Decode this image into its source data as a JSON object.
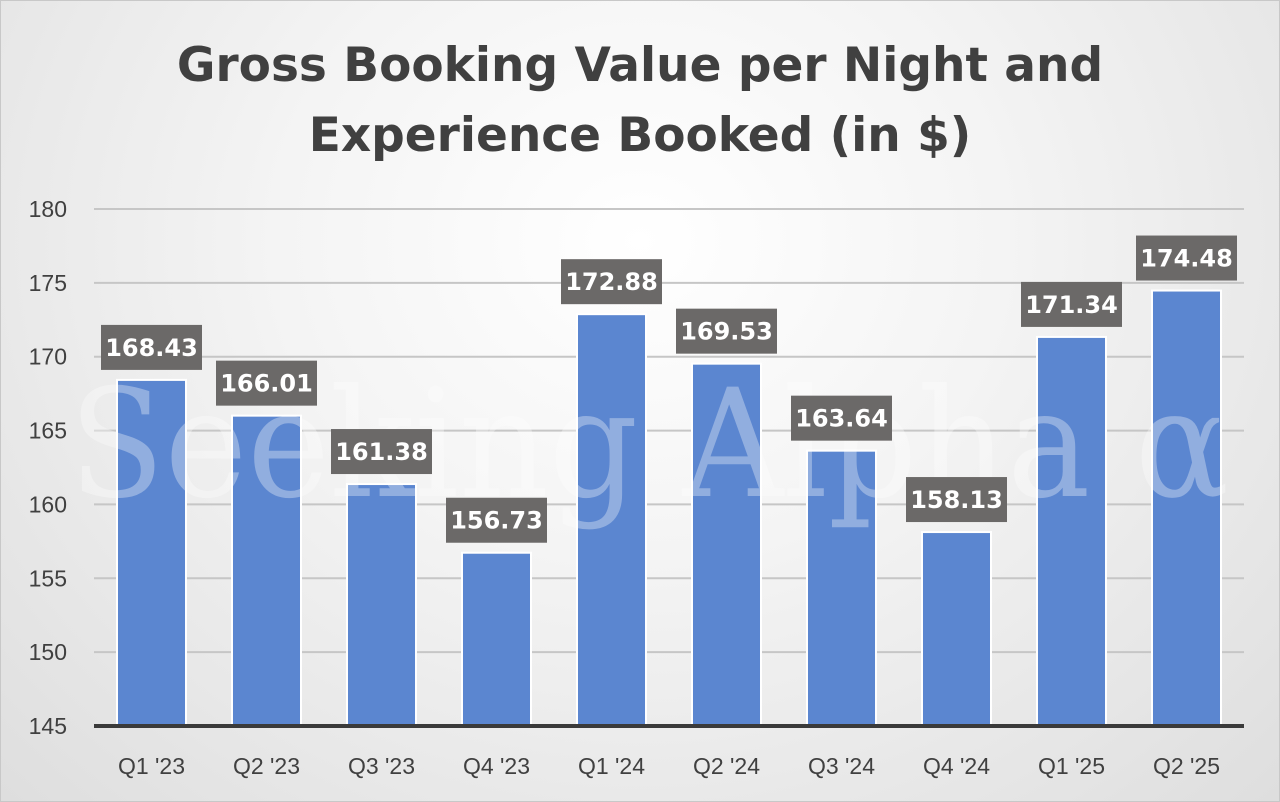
{
  "chart_data": {
    "type": "bar",
    "title_lines": [
      "Gross Booking Value per Night and",
      "Experience Booked (in $)"
    ],
    "categories": [
      "Q1 '23",
      "Q2 '23",
      "Q3 '23",
      "Q4 '23",
      "Q1 '24",
      "Q2 '24",
      "Q3 '24",
      "Q4 '24",
      "Q1 '25",
      "Q2 '25"
    ],
    "values": [
      168.43,
      166.01,
      161.38,
      156.73,
      172.88,
      169.53,
      163.64,
      158.13,
      171.34,
      174.48
    ],
    "data_labels": [
      "168.43",
      "166.01",
      "161.38",
      "156.73",
      "172.88",
      "169.53",
      "163.64",
      "158.13",
      "171.34",
      "174.48"
    ],
    "yticks": [
      145,
      150,
      155,
      160,
      165,
      170,
      175,
      180
    ],
    "ylim": [
      145,
      180
    ],
    "xlabel": "",
    "ylabel": "",
    "grid": true,
    "legend": "none",
    "colors": {
      "bar": "#5b86d0",
      "bar_edge": "#ffffff",
      "label_box": "#6b6968",
      "label_text": "#ffffff",
      "grid": "#c6c6c6",
      "axis": "#3a3a3a",
      "tick_text": "#404040",
      "title": "#404040"
    },
    "watermark": "Seeking Alpha α"
  }
}
